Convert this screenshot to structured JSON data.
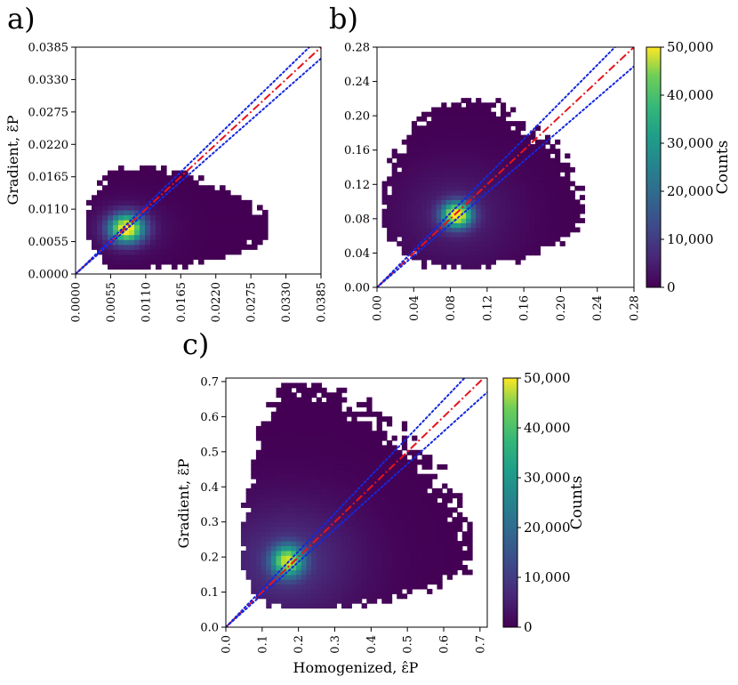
{
  "figure": {
    "panels": [
      {
        "panel_label": "a)",
        "ylabel": "Gradient, ε̃P",
        "xlabel": "",
        "xticks": [
          "0.0000",
          "0.0055",
          "0.0110",
          "0.0165",
          "0.0220",
          "0.0275",
          "0.0330",
          "0.0385"
        ],
        "yticks": [
          "0.0000",
          "0.0055",
          "0.0110",
          "0.0165",
          "0.0220",
          "0.0275",
          "0.0330",
          "0.0385"
        ]
      },
      {
        "panel_label": "b)",
        "ylabel": "",
        "xlabel": "",
        "xticks": [
          "0.00",
          "0.04",
          "0.08",
          "0.12",
          "0.16",
          "0.20",
          "0.24",
          "0.28"
        ],
        "yticks": [
          "0.00",
          "0.04",
          "0.08",
          "0.12",
          "0.16",
          "0.20",
          "0.24",
          "0.28"
        ],
        "colorbar": {
          "label": "Counts",
          "ticks": [
            "0",
            "10,000",
            "20,000",
            "30,000",
            "40,000",
            "50,000"
          ]
        }
      },
      {
        "panel_label": "c)",
        "ylabel": "Gradient, ε̃P",
        "xlabel": "Homogenized, ε̂P",
        "xticks": [
          "0.0",
          "0.1",
          "0.2",
          "0.3",
          "0.4",
          "0.5",
          "0.6",
          "0.7"
        ],
        "yticks": [
          "0.0",
          "0.1",
          "0.2",
          "0.3",
          "0.4",
          "0.5",
          "0.6",
          "0.7"
        ],
        "colorbar": {
          "label": "Counts",
          "ticks": [
            "0",
            "10,000",
            "20,000",
            "30,000",
            "40,000",
            "50,000"
          ]
        }
      }
    ]
  },
  "chart_data": [
    {
      "type": "heatmap",
      "title": "",
      "xlabel": "",
      "ylabel": "Gradient, ε̃P",
      "xlim": [
        0,
        0.0385
      ],
      "ylim": [
        0,
        0.0385
      ],
      "colormap": "viridis",
      "clim": [
        0,
        50000
      ],
      "density_extent": {
        "x": [
          0.0005,
          0.03
        ],
        "y": [
          0.0012,
          0.018
        ]
      },
      "density_peak": {
        "x": 0.008,
        "y": 0.0078,
        "count": 50000
      },
      "reference_lines": [
        {
          "style": "dash-dot",
          "color": "#e8141c",
          "slope": 1.0
        },
        {
          "style": "dotted",
          "color": "#1428e0",
          "slope": 1.05
        },
        {
          "style": "dotted",
          "color": "#1428e0",
          "slope": 0.95
        }
      ]
    },
    {
      "type": "heatmap",
      "title": "",
      "xlabel": "",
      "ylabel": "",
      "xlim": [
        0,
        0.28
      ],
      "ylim": [
        0,
        0.28
      ],
      "colormap": "viridis",
      "clim": [
        0,
        50000
      ],
      "colorbar_label": "Counts",
      "density_extent": {
        "x": [
          0.005,
          0.225
        ],
        "y": [
          0.005,
          0.22
        ]
      },
      "density_peak": {
        "x": 0.087,
        "y": 0.085,
        "count": 50000
      },
      "reference_lines": [
        {
          "style": "dash-dot",
          "color": "#e8141c",
          "slope": 1.0
        },
        {
          "style": "dotted",
          "color": "#1428e0",
          "slope": 1.08
        },
        {
          "style": "dotted",
          "color": "#1428e0",
          "slope": 0.92
        }
      ]
    },
    {
      "type": "heatmap",
      "title": "",
      "xlabel": "Homogenized, ε̂P",
      "ylabel": "Gradient, ε̃P",
      "xlim": [
        0,
        0.72
      ],
      "ylim": [
        0,
        0.71
      ],
      "colormap": "viridis",
      "clim": [
        0,
        50000
      ],
      "colorbar_label": "Counts",
      "density_extent": {
        "x": [
          0.04,
          0.68
        ],
        "y": [
          0.05,
          0.69
        ]
      },
      "density_peak": {
        "x": 0.17,
        "y": 0.19,
        "count": 42000
      },
      "reference_lines": [
        {
          "style": "dash-dot",
          "color": "#e8141c",
          "slope": 1.0
        },
        {
          "style": "dotted",
          "color": "#1428e0",
          "slope": 1.08
        },
        {
          "style": "dotted",
          "color": "#1428e0",
          "slope": 0.93
        }
      ]
    }
  ]
}
